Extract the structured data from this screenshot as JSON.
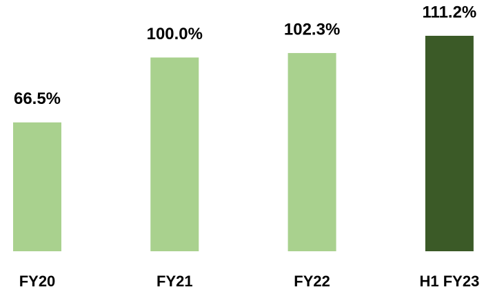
{
  "chart_data": {
    "type": "bar",
    "categories": [
      "FY20",
      "FY21",
      "FY22",
      "H1 FY23"
    ],
    "values": [
      66.5,
      100.0,
      102.3,
      111.2
    ],
    "value_labels": [
      "66.5%",
      "100.0%",
      "102.3%",
      "111.2%"
    ],
    "colors": [
      "#a9d18e",
      "#a9d18e",
      "#a9d18e",
      "#3b5a27"
    ]
  }
}
